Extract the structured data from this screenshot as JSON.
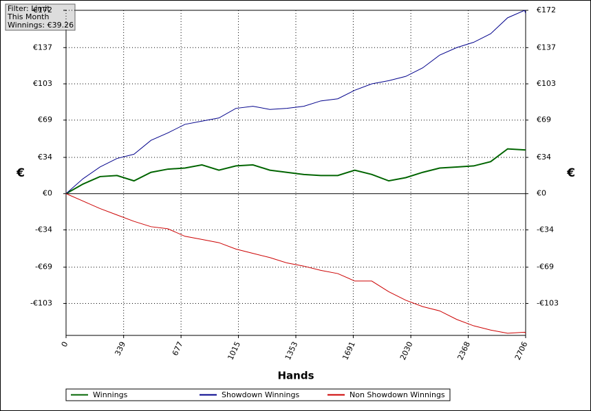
{
  "chart_data": {
    "type": "line",
    "info": [
      "Filter: Limit",
      "This Month",
      "Winnings: €39.26"
    ],
    "xlabel": "Hands",
    "ylabel": "€",
    "x": [
      0,
      100,
      200,
      300,
      400,
      500,
      600,
      700,
      800,
      900,
      1000,
      1100,
      1200,
      1300,
      1400,
      1500,
      1600,
      1700,
      1800,
      1900,
      2000,
      2100,
      2200,
      2300,
      2400,
      2500,
      2600,
      2700,
      2706
    ],
    "series": [
      {
        "name": "Winnings",
        "color": "#006400",
        "values": [
          0,
          9,
          16,
          17,
          12,
          20,
          23,
          24,
          27,
          22,
          26,
          27,
          22,
          20,
          18,
          17,
          17,
          22,
          18,
          12,
          15,
          20,
          24,
          25,
          26,
          30,
          42,
          41,
          41
        ]
      },
      {
        "name": "Showdown Winnings",
        "color": "#00008b",
        "values": [
          0,
          14,
          25,
          33,
          37,
          50,
          57,
          65,
          68,
          71,
          80,
          82,
          79,
          80,
          82,
          87,
          89,
          97,
          103,
          106,
          110,
          118,
          130,
          137,
          142,
          150,
          165,
          172,
          169
        ]
      },
      {
        "name": "Non Showdown Winnings",
        "color": "#cc0000",
        "values": [
          0,
          -7,
          -14,
          -20,
          -26,
          -31,
          -33,
          -40,
          -43,
          -46,
          -52,
          -56,
          -60,
          -65,
          -68,
          -72,
          -75,
          -82,
          -82,
          -92,
          -100,
          -106,
          -110,
          -118,
          -124,
          -128,
          -131,
          -130,
          -131
        ]
      }
    ],
    "xlim": [
      0,
      2706
    ],
    "xticks": [
      0,
      339,
      677,
      1015,
      1353,
      1691,
      2030,
      2368,
      2706
    ],
    "ylim": [
      -133,
      172
    ],
    "yticks": [
      {
        "value": 172,
        "label": "€172"
      },
      {
        "value": 137,
        "label": "€137"
      },
      {
        "value": 103,
        "label": "€103"
      },
      {
        "value": 69,
        "label": "€69"
      },
      {
        "value": 34,
        "label": "€34"
      },
      {
        "value": 0,
        "label": "€0"
      },
      {
        "value": -34,
        "label": "-€34"
      },
      {
        "value": -69,
        "label": "-€69"
      },
      {
        "value": -103,
        "label": "-€103"
      }
    ],
    "grid": true
  }
}
